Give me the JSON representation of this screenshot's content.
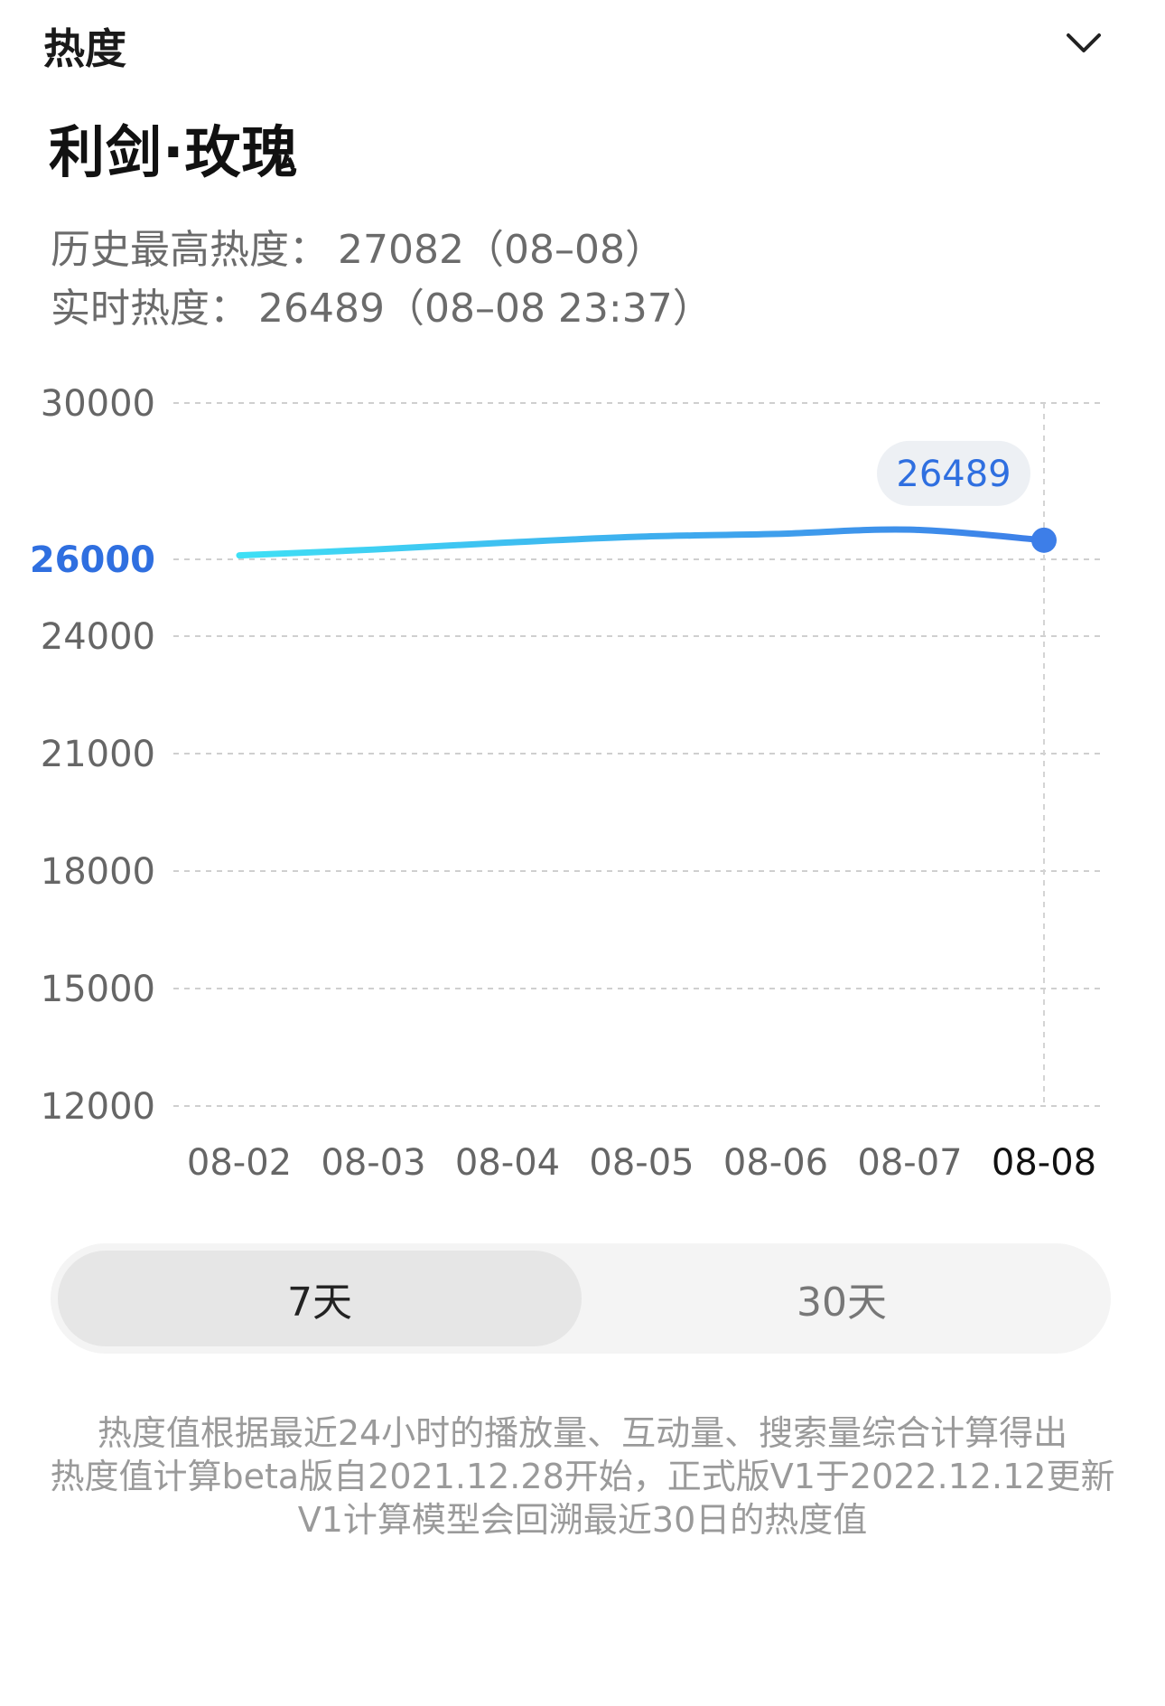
{
  "header": {
    "label": "热度",
    "collapse_icon": "chevron-down-icon"
  },
  "title": "利剑·玫瑰",
  "stats": [
    {
      "label": "历史最高热度：",
      "value": "27082（08–08）"
    },
    {
      "label": "实时热度：",
      "value": "26489（08–08 23:37）"
    }
  ],
  "colors": {
    "accent": "#2f6fe0",
    "line_start": "#3fe0f5",
    "line_end": "#3d7ee8"
  },
  "chart_data": {
    "type": "line",
    "title": "",
    "xlabel": "",
    "ylabel": "",
    "categories": [
      "08-02",
      "08-03",
      "08-04",
      "08-05",
      "08-06",
      "08-07",
      "08-08"
    ],
    "series": [
      {
        "values": [
          26100,
          26250,
          26430,
          26580,
          26650,
          26760,
          26489
        ]
      }
    ],
    "y_ticks": [
      "30000",
      "26000",
      "24000",
      "21000",
      "18000",
      "15000",
      "12000"
    ],
    "highlight_y_tick": "26000",
    "tooltip": {
      "category": "08-08",
      "value": "26489"
    },
    "grid": true,
    "legend": "none"
  },
  "range_toggle": {
    "options": [
      "7天",
      "30天"
    ],
    "selected": "7天"
  },
  "footnote": [
    "热度值根据最近24小时的播放量、互动量、搜索量综合计算得出",
    "热度值计算beta版自2021.12.28开始，正式版V1于2022.12.12更新",
    "V1计算模型会回溯最近30日的热度值"
  ]
}
